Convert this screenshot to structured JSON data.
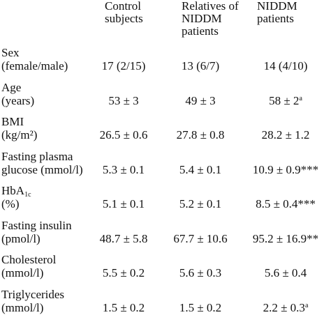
{
  "table": {
    "columns": [
      "Control subjects",
      "Relatives of NIDDM patients",
      "NIDDM patients"
    ],
    "rows": [
      {
        "label": [
          "Sex",
          "(female/male)"
        ],
        "values": [
          "17 (2/15)",
          "13 (6/7)",
          "14 (4/10)"
        ]
      },
      {
        "label": [
          "Age",
          "(years)"
        ],
        "values": [
          "53 ± 3",
          "49 ± 3",
          {
            "text": "58 ± 2",
            "mark": "a"
          }
        ]
      },
      {
        "label": [
          "BMI",
          "(kg/m²)"
        ],
        "values": [
          "26.5 ± 0.6",
          "27.8 ± 0.8",
          "28.2 ± 1.2"
        ]
      },
      {
        "label": [
          "Fasting plasma",
          "glucose (mmol/l)"
        ],
        "values": [
          "5.3 ± 0.1",
          "5.4 ± 0.1",
          "10.9 ± 0.9***"
        ]
      },
      {
        "label": [
          {
            "text": "HbA",
            "sub": "1c"
          },
          "(%)"
        ],
        "values": [
          "5.1 ± 0.1",
          "5.2 ± 0.1",
          "8.5 ± 0.4***"
        ]
      },
      {
        "label": [
          "Fasting insulin",
          "(pmol/l)"
        ],
        "values": [
          "48.7 ± 5.8",
          "67.7 ± 10.6",
          "95.2 ± 16.9**"
        ]
      },
      {
        "label": [
          "Cholesterol",
          "(mmol/l)"
        ],
        "values": [
          "5.5 ± 0.2",
          "5.6 ± 0.3",
          "5.6 ± 0.4"
        ]
      },
      {
        "label": [
          "Triglycerides",
          "(mmol/l)"
        ],
        "values": [
          "1.5 ± 0.2",
          "1.5 ± 0.2",
          {
            "text": "2.2 ± 0.3",
            "mark": "a"
          }
        ]
      }
    ]
  }
}
